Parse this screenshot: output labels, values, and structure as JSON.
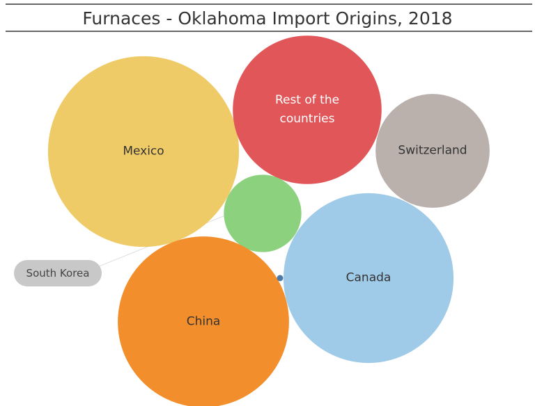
{
  "chart_data": {
    "type": "bubble",
    "title": "Furnaces - Oklahoma Import Origins, 2018",
    "categories": [
      "Mexico",
      "Rest of the countries",
      "Switzerland",
      "South Korea",
      "Canada",
      "China",
      null
    ],
    "values": [
      188,
      114,
      67,
      31,
      149,
      151,
      0.2
    ],
    "colors": [
      "#efcb68",
      "#e15759",
      "#bab0ac",
      "#8cd17d",
      "#a0cbe8",
      "#f28e2b",
      "#4e79a7"
    ]
  }
}
